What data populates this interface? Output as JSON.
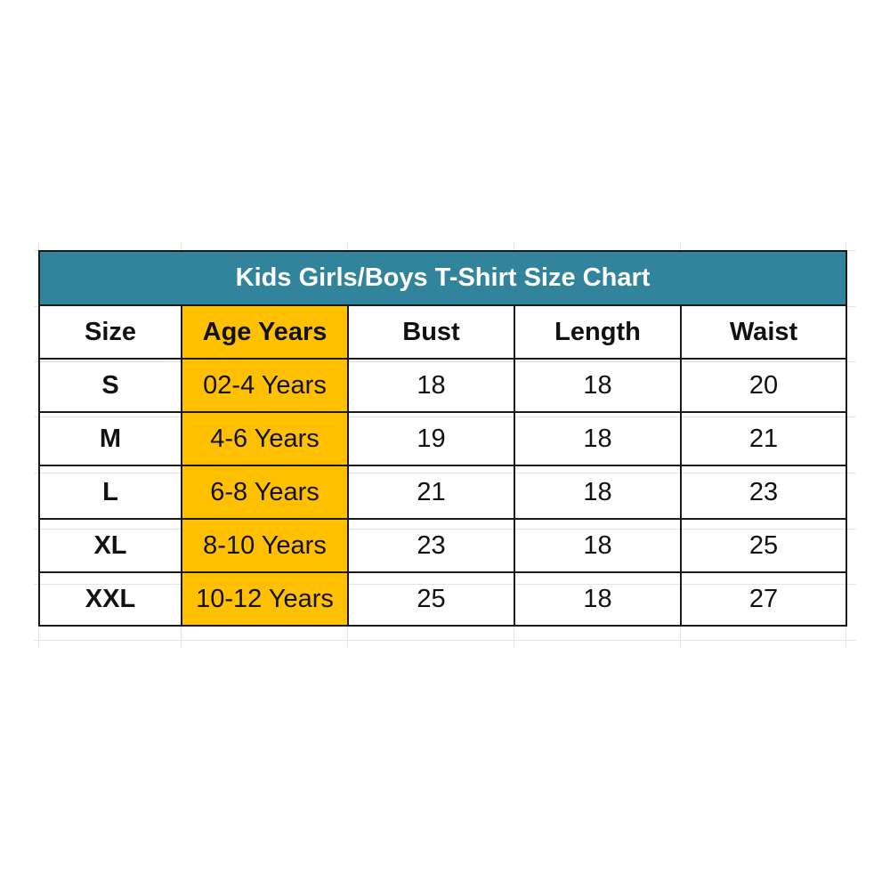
{
  "title": "Kids Girls/Boys T-Shirt Size Chart",
  "colors": {
    "title_bg": "#31849b",
    "age_column_bg": "#ffc000"
  },
  "headers": [
    "Size",
    "Age Years",
    "Bust",
    "Length",
    "Waist"
  ],
  "rows": [
    {
      "size": "S",
      "age": "02-4 Years",
      "bust": "18",
      "length": "18",
      "waist": "20"
    },
    {
      "size": "M",
      "age": "4-6 Years",
      "bust": "19",
      "length": "18",
      "waist": "21"
    },
    {
      "size": "L",
      "age": "6-8 Years",
      "bust": "21",
      "length": "18",
      "waist": "23"
    },
    {
      "size": "XL",
      "age": "8-10 Years",
      "bust": "23",
      "length": "18",
      "waist": "25"
    },
    {
      "size": "XXL",
      "age": "10-12 Years",
      "bust": "25",
      "length": "18",
      "waist": "27"
    }
  ]
}
